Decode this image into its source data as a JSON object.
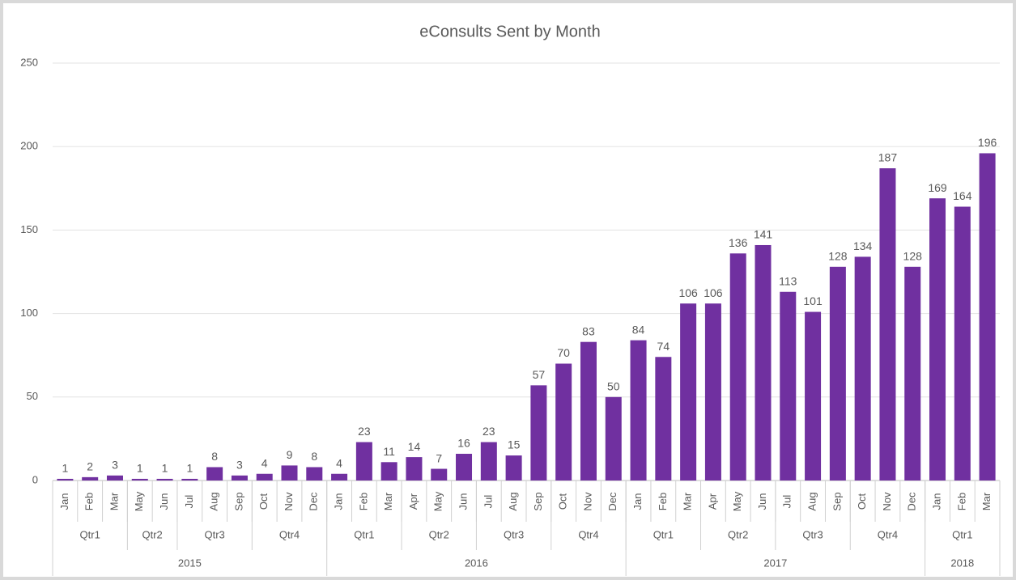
{
  "chart_data": {
    "type": "bar",
    "title": "eConsults Sent by Month",
    "color": "#7030a0",
    "ylim": [
      0,
      250
    ],
    "yticks": [
      0,
      50,
      100,
      150,
      200,
      250
    ],
    "grid": true,
    "years": [
      {
        "label": "2015",
        "quarters": [
          {
            "label": "Qtr1",
            "months": [
              "Jan",
              "Feb",
              "Mar"
            ]
          },
          {
            "label": "Qtr2",
            "months": [
              "May",
              "Jun"
            ]
          },
          {
            "label": "Qtr3",
            "months": [
              "Jul",
              "Aug",
              "Sep"
            ]
          },
          {
            "label": "Qtr4",
            "months": [
              "Oct",
              "Nov",
              "Dec"
            ]
          }
        ]
      },
      {
        "label": "2016",
        "quarters": [
          {
            "label": "Qtr1",
            "months": [
              "Jan",
              "Feb",
              "Mar"
            ]
          },
          {
            "label": "Qtr2",
            "months": [
              "Apr",
              "May",
              "Jun"
            ]
          },
          {
            "label": "Qtr3",
            "months": [
              "Jul",
              "Aug",
              "Sep"
            ]
          },
          {
            "label": "Qtr4",
            "months": [
              "Oct",
              "Nov",
              "Dec"
            ]
          }
        ]
      },
      {
        "label": "2017",
        "quarters": [
          {
            "label": "Qtr1",
            "months": [
              "Jan",
              "Feb",
              "Mar"
            ]
          },
          {
            "label": "Qtr2",
            "months": [
              "Apr",
              "May",
              "Jun"
            ]
          },
          {
            "label": "Qtr3",
            "months": [
              "Jul",
              "Aug",
              "Sep"
            ]
          },
          {
            "label": "Qtr4",
            "months": [
              "Oct",
              "Nov",
              "Dec"
            ]
          }
        ]
      },
      {
        "label": "2018",
        "quarters": [
          {
            "label": "Qtr1",
            "months": [
              "Jan",
              "Feb",
              "Mar"
            ]
          }
        ]
      }
    ],
    "values": [
      1,
      2,
      3,
      1,
      1,
      1,
      8,
      3,
      4,
      9,
      8,
      4,
      23,
      11,
      14,
      7,
      16,
      23,
      15,
      57,
      70,
      83,
      50,
      84,
      74,
      106,
      106,
      136,
      141,
      113,
      101,
      128,
      134,
      187,
      128,
      169,
      164,
      196
    ]
  }
}
